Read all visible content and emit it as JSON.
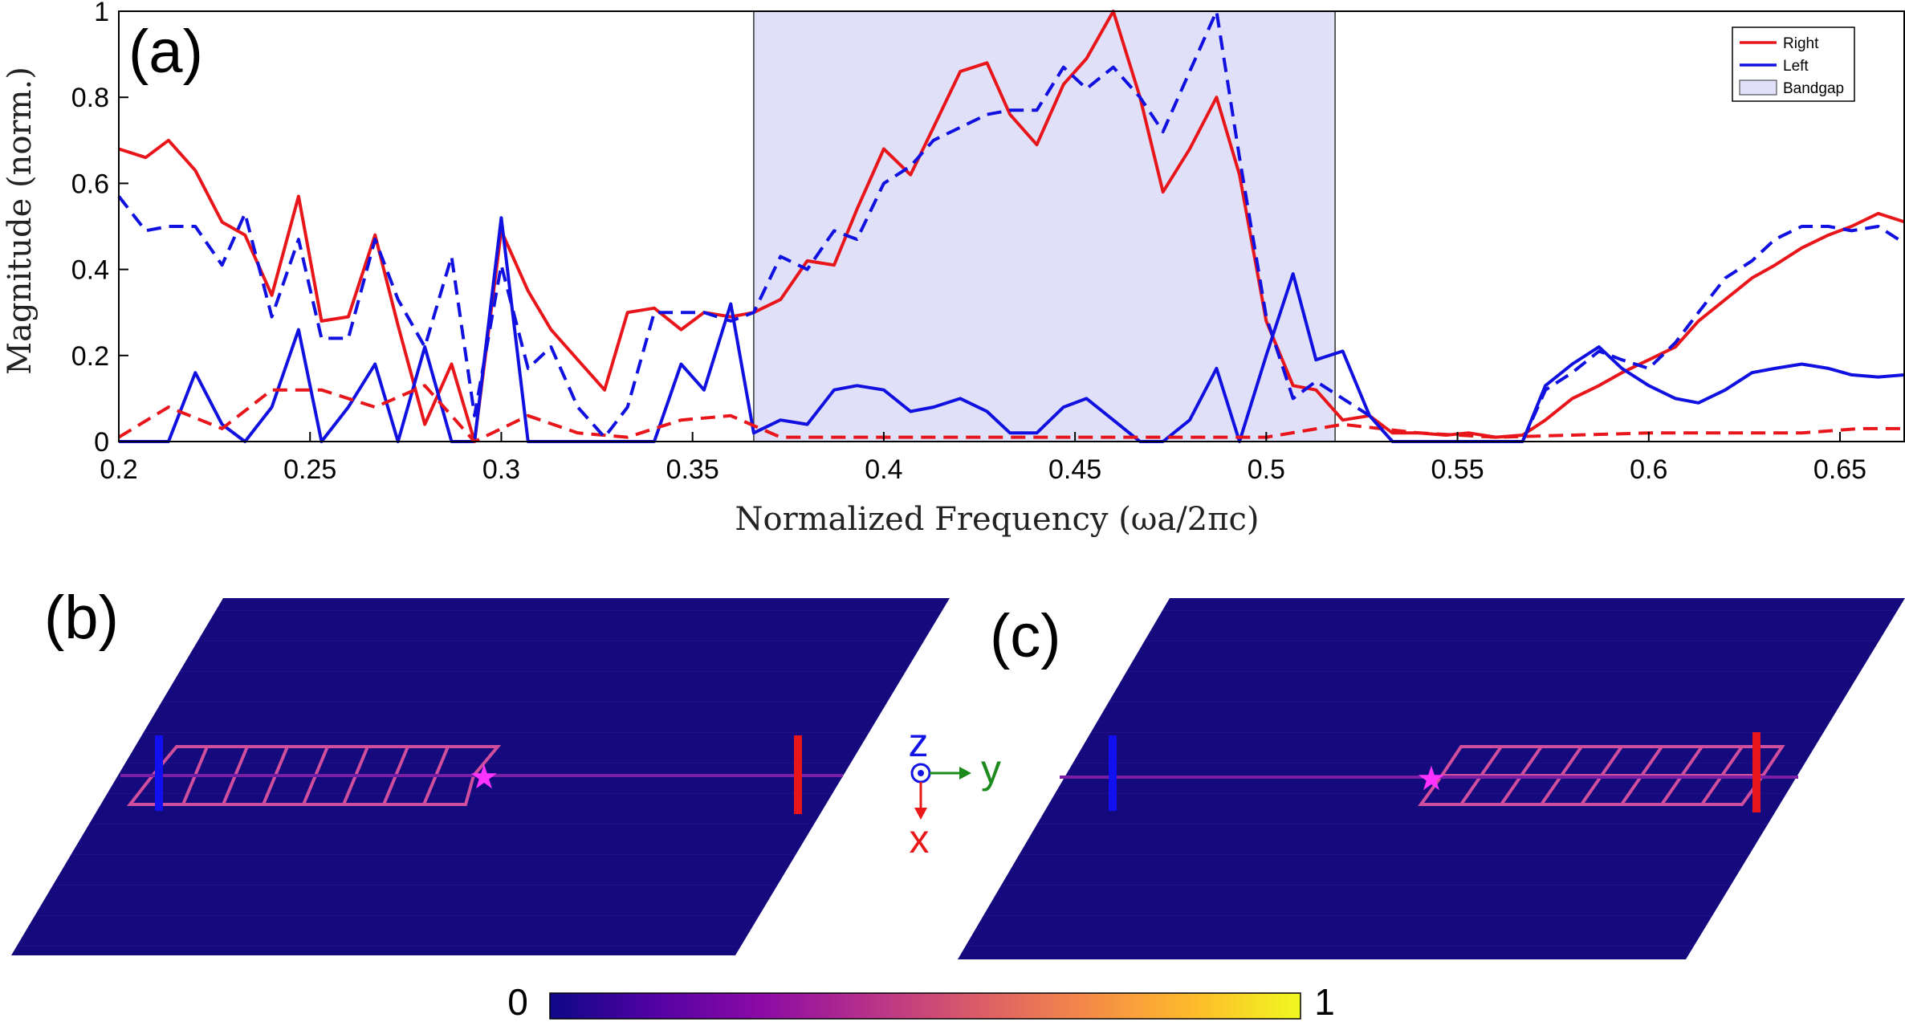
{
  "chart_data": [
    {
      "type": "line",
      "panel_label": "(a)",
      "xlabel": "Normalized Frequency (ωa/2πc)",
      "ylabel": "Magnitude (norm.)",
      "xlim": [
        0.2,
        0.667
      ],
      "ylim": [
        0,
        1
      ],
      "xticks": [
        "0.2",
        "0.25",
        "0.3",
        "0.35",
        "0.4",
        "0.45",
        "0.5",
        "0.55",
        "0.6",
        "0.65"
      ],
      "yticks": [
        "0",
        "0.2",
        "0.4",
        "0.6",
        "0.8",
        "1"
      ],
      "grid": false,
      "legend_position": "top-right",
      "legend": [
        {
          "label": "Right",
          "kind": "line",
          "color": "#e8161b"
        },
        {
          "label": "Left",
          "kind": "line",
          "color": "#1010e0"
        },
        {
          "label": "Bandgap",
          "kind": "patch",
          "color": "#e0e0f8"
        }
      ],
      "bandgap": {
        "x0": 0.366,
        "x1": 0.518,
        "color": "#e0e0f8"
      },
      "series": [
        {
          "name": "Right",
          "style": "solid",
          "color": "#e8161b",
          "x": [
            0.2,
            0.207,
            0.213,
            0.22,
            0.227,
            0.233,
            0.24,
            0.247,
            0.253,
            0.26,
            0.267,
            0.273,
            0.28,
            0.287,
            0.293,
            0.3,
            0.307,
            0.313,
            0.32,
            0.327,
            0.333,
            0.34,
            0.347,
            0.353,
            0.36,
            0.366,
            0.373,
            0.38,
            0.387,
            0.393,
            0.4,
            0.407,
            0.413,
            0.42,
            0.427,
            0.433,
            0.44,
            0.447,
            0.453,
            0.46,
            0.467,
            0.473,
            0.48,
            0.487,
            0.493,
            0.5,
            0.507,
            0.513,
            0.52,
            0.527,
            0.533,
            0.54,
            0.547,
            0.553,
            0.56,
            0.567,
            0.573,
            0.58,
            0.587,
            0.593,
            0.6,
            0.607,
            0.613,
            0.62,
            0.627,
            0.633,
            0.64,
            0.647,
            0.653,
            0.66,
            0.667
          ],
          "y": [
            0.68,
            0.66,
            0.7,
            0.63,
            0.51,
            0.48,
            0.34,
            0.57,
            0.28,
            0.29,
            0.48,
            0.27,
            0.04,
            0.18,
            0.0,
            0.49,
            0.35,
            0.26,
            0.19,
            0.12,
            0.3,
            0.31,
            0.26,
            0.3,
            0.29,
            0.3,
            0.33,
            0.42,
            0.41,
            0.54,
            0.68,
            0.62,
            0.73,
            0.86,
            0.88,
            0.76,
            0.69,
            0.83,
            0.89,
            1.0,
            0.8,
            0.58,
            0.68,
            0.8,
            0.62,
            0.28,
            0.13,
            0.12,
            0.05,
            0.06,
            0.02,
            0.02,
            0.015,
            0.02,
            0.01,
            0.015,
            0.05,
            0.1,
            0.13,
            0.16,
            0.19,
            0.22,
            0.28,
            0.33,
            0.38,
            0.41,
            0.45,
            0.48,
            0.5,
            0.53,
            0.51
          ]
        },
        {
          "name": "Left",
          "style": "solid",
          "color": "#1010e0",
          "x": [
            0.2,
            0.207,
            0.213,
            0.22,
            0.227,
            0.233,
            0.24,
            0.247,
            0.253,
            0.26,
            0.267,
            0.273,
            0.28,
            0.287,
            0.293,
            0.3,
            0.307,
            0.313,
            0.32,
            0.327,
            0.333,
            0.34,
            0.347,
            0.353,
            0.36,
            0.366,
            0.373,
            0.38,
            0.387,
            0.393,
            0.4,
            0.407,
            0.413,
            0.42,
            0.427,
            0.433,
            0.44,
            0.447,
            0.453,
            0.46,
            0.467,
            0.473,
            0.48,
            0.487,
            0.493,
            0.5,
            0.507,
            0.513,
            0.52,
            0.527,
            0.533,
            0.54,
            0.547,
            0.553,
            0.56,
            0.567,
            0.573,
            0.58,
            0.587,
            0.593,
            0.6,
            0.607,
            0.613,
            0.62,
            0.627,
            0.633,
            0.64,
            0.647,
            0.653,
            0.66,
            0.667
          ],
          "y": [
            0.0,
            0.0,
            0.0,
            0.16,
            0.04,
            0.0,
            0.08,
            0.26,
            0.0,
            0.08,
            0.18,
            0.0,
            0.22,
            0.0,
            0.0,
            0.52,
            0.0,
            0.0,
            0.0,
            0.0,
            0.0,
            0.0,
            0.18,
            0.12,
            0.32,
            0.02,
            0.05,
            0.04,
            0.12,
            0.13,
            0.12,
            0.07,
            0.08,
            0.1,
            0.07,
            0.02,
            0.02,
            0.08,
            0.1,
            0.05,
            0.0,
            0.0,
            0.05,
            0.17,
            0.0,
            0.2,
            0.39,
            0.19,
            0.21,
            0.06,
            0.0,
            0.0,
            0.0,
            0.0,
            0.0,
            0.0,
            0.13,
            0.18,
            0.22,
            0.17,
            0.13,
            0.1,
            0.09,
            0.12,
            0.16,
            0.17,
            0.18,
            0.17,
            0.155,
            0.15,
            0.155
          ]
        },
        {
          "name": "Right (dashed)",
          "style": "dashed",
          "color": "#e8161b",
          "x": [
            0.2,
            0.213,
            0.227,
            0.24,
            0.253,
            0.267,
            0.28,
            0.293,
            0.307,
            0.32,
            0.333,
            0.347,
            0.36,
            0.373,
            0.393,
            0.42,
            0.45,
            0.48,
            0.5,
            0.52,
            0.54,
            0.56,
            0.58,
            0.6,
            0.62,
            0.64,
            0.655,
            0.667
          ],
          "y": [
            0.01,
            0.08,
            0.03,
            0.12,
            0.12,
            0.08,
            0.13,
            0.0,
            0.06,
            0.02,
            0.01,
            0.05,
            0.06,
            0.01,
            0.01,
            0.01,
            0.01,
            0.01,
            0.01,
            0.04,
            0.02,
            0.01,
            0.015,
            0.02,
            0.02,
            0.02,
            0.03,
            0.03
          ]
        },
        {
          "name": "Left (dashed)",
          "style": "dashed",
          "color": "#1010e0",
          "x": [
            0.2,
            0.207,
            0.213,
            0.22,
            0.227,
            0.233,
            0.24,
            0.247,
            0.253,
            0.26,
            0.267,
            0.273,
            0.28,
            0.287,
            0.293,
            0.3,
            0.307,
            0.313,
            0.32,
            0.327,
            0.333,
            0.34,
            0.347,
            0.353,
            0.36,
            0.366,
            0.373,
            0.38,
            0.387,
            0.393,
            0.4,
            0.407,
            0.413,
            0.42,
            0.427,
            0.433,
            0.44,
            0.447,
            0.453,
            0.46,
            0.467,
            0.473,
            0.48,
            0.487,
            0.493,
            0.5,
            0.507,
            0.513,
            0.52,
            0.527,
            0.533,
            0.54,
            0.547,
            0.553,
            0.56,
            0.567,
            0.573,
            0.58,
            0.587,
            0.593,
            0.6,
            0.607,
            0.613,
            0.62,
            0.627,
            0.633,
            0.64,
            0.647,
            0.653,
            0.66,
            0.667
          ],
          "y": [
            0.57,
            0.49,
            0.5,
            0.5,
            0.41,
            0.53,
            0.29,
            0.47,
            0.24,
            0.24,
            0.47,
            0.33,
            0.22,
            0.43,
            0.06,
            0.41,
            0.17,
            0.22,
            0.08,
            0.01,
            0.08,
            0.3,
            0.3,
            0.3,
            0.28,
            0.3,
            0.43,
            0.4,
            0.49,
            0.47,
            0.6,
            0.64,
            0.7,
            0.73,
            0.76,
            0.77,
            0.77,
            0.87,
            0.82,
            0.87,
            0.8,
            0.72,
            0.86,
            1.0,
            0.66,
            0.29,
            0.1,
            0.14,
            0.1,
            0.06,
            0.0,
            0.0,
            0.0,
            0.0,
            0.0,
            0.0,
            0.12,
            0.16,
            0.21,
            0.19,
            0.17,
            0.23,
            0.3,
            0.38,
            0.42,
            0.47,
            0.5,
            0.5,
            0.49,
            0.5,
            0.46
          ]
        }
      ]
    }
  ],
  "field_maps": [
    {
      "panel_label": "(b)"
    },
    {
      "panel_label": "(c)"
    }
  ],
  "axes_icon": {
    "z_label": "z",
    "y_label": "y",
    "x_label": "x",
    "z_color": "#1414e6",
    "y_color": "#1c8a1c",
    "x_color": "#e81818"
  },
  "colorbar": {
    "min_label": "0",
    "max_label": "1",
    "colormap": [
      "#0d0887",
      "#5302a3",
      "#8b0aa5",
      "#b83289",
      "#db5c68",
      "#f48849",
      "#febc2a",
      "#f0f921"
    ]
  }
}
